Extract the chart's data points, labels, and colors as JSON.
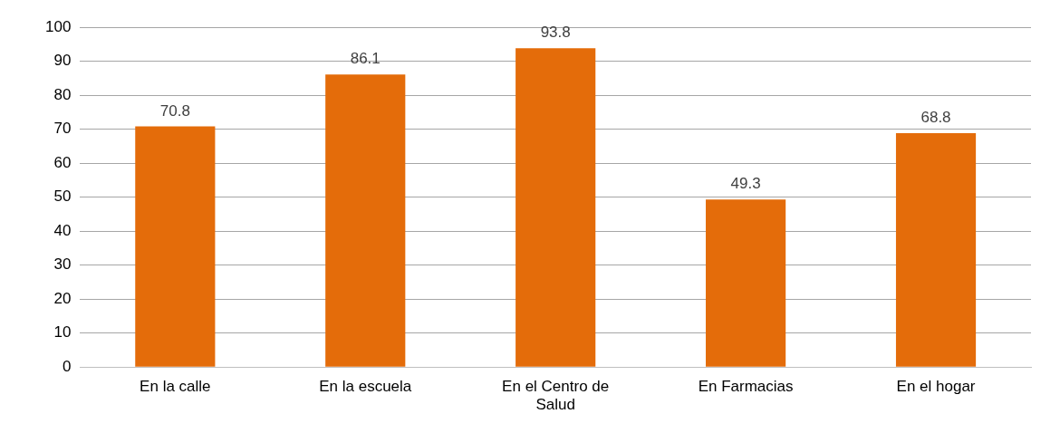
{
  "chart_data": {
    "type": "bar",
    "categories": [
      "En la calle",
      "En la escuela",
      "En el Centro de Salud",
      "En Farmacias",
      "En el hogar"
    ],
    "values": [
      70.8,
      86.1,
      93.8,
      49.3,
      68.8
    ],
    "color": "#e46c0a",
    "ylim": [
      0,
      100
    ],
    "yticks": [
      0,
      10,
      20,
      30,
      40,
      50,
      60,
      70,
      80,
      90,
      100
    ],
    "grid": "y",
    "legend": false,
    "data_labels": true
  }
}
